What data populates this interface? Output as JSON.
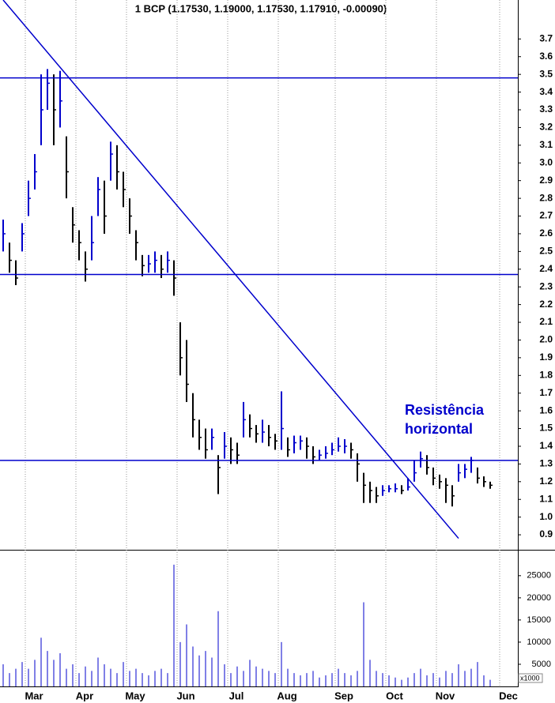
{
  "chart_data": {
    "type": "hlc",
    "title": "1 BCP (1.17530, 1.19000, 1.17530, 1.17910, -0.00090)",
    "annotation": [
      "Resistência",
      "horizontal"
    ],
    "categories": [
      null,
      null,
      null,
      null,
      "Mar",
      null,
      null,
      null,
      null,
      null,
      null,
      null,
      "Apr",
      null,
      null,
      null,
      null,
      null,
      null,
      null,
      "May",
      null,
      null,
      null,
      null,
      null,
      null,
      null,
      "Jun",
      null,
      null,
      null,
      null,
      null,
      null,
      null,
      "Jul",
      null,
      null,
      null,
      null,
      null,
      null,
      null,
      "Aug",
      null,
      null,
      null,
      null,
      null,
      null,
      null,
      null,
      "Sep",
      null,
      null,
      null,
      null,
      null,
      null,
      null,
      "Oct",
      null,
      null,
      null,
      null,
      null,
      null,
      null,
      "Nov",
      null,
      null,
      null,
      null,
      null,
      null,
      null,
      null,
      null,
      "Dec"
    ],
    "high": [
      2.68,
      2.55,
      2.45,
      2.66,
      2.9,
      3.05,
      3.5,
      3.53,
      3.5,
      3.52,
      3.15,
      2.75,
      2.62,
      2.5,
      2.7,
      2.92,
      2.9,
      3.12,
      3.1,
      2.95,
      2.8,
      2.62,
      2.48,
      2.48,
      2.5,
      2.48,
      2.5,
      2.45,
      2.1,
      2.0,
      1.7,
      1.55,
      1.5,
      1.5,
      1.35,
      1.48,
      1.45,
      1.42,
      1.65,
      1.58,
      1.52,
      1.55,
      1.52,
      1.47,
      1.71,
      1.45,
      1.46,
      1.46,
      1.45,
      1.4,
      1.38,
      1.4,
      1.42,
      1.45,
      1.44,
      1.42,
      1.36,
      1.25,
      1.2,
      1.17,
      1.18,
      1.18,
      1.19,
      1.18,
      1.22,
      1.32,
      1.37,
      1.35,
      1.28,
      1.24,
      1.22,
      1.18,
      1.3,
      1.3,
      1.34,
      1.28,
      1.23,
      1.2,
      null,
      null
    ],
    "low": [
      2.5,
      2.38,
      2.31,
      2.5,
      2.7,
      2.85,
      3.1,
      3.3,
      3.1,
      3.2,
      2.8,
      2.55,
      2.45,
      2.33,
      2.45,
      2.7,
      2.6,
      2.9,
      2.85,
      2.75,
      2.6,
      2.45,
      2.36,
      2.38,
      2.38,
      2.35,
      2.38,
      2.25,
      1.8,
      1.65,
      1.45,
      1.38,
      1.33,
      1.38,
      1.13,
      1.33,
      1.3,
      1.3,
      1.45,
      1.45,
      1.42,
      1.42,
      1.4,
      1.38,
      1.38,
      1.34,
      1.36,
      1.38,
      1.33,
      1.3,
      1.32,
      1.33,
      1.35,
      1.37,
      1.36,
      1.33,
      1.2,
      1.08,
      1.08,
      1.08,
      1.12,
      1.14,
      1.14,
      1.13,
      1.15,
      1.2,
      1.28,
      1.24,
      1.18,
      1.16,
      1.08,
      1.06,
      1.2,
      1.22,
      1.25,
      1.19,
      1.17,
      1.16,
      null,
      null
    ],
    "close": [
      2.6,
      2.45,
      2.35,
      2.6,
      2.8,
      2.95,
      3.3,
      3.45,
      3.3,
      3.35,
      2.95,
      2.65,
      2.55,
      2.4,
      2.55,
      2.85,
      2.7,
      3.05,
      2.95,
      2.85,
      2.7,
      2.55,
      2.42,
      2.43,
      2.45,
      2.4,
      2.45,
      2.35,
      1.9,
      1.75,
      1.55,
      1.45,
      1.38,
      1.45,
      1.28,
      1.4,
      1.38,
      1.35,
      1.55,
      1.5,
      1.47,
      1.48,
      1.45,
      1.43,
      1.5,
      1.38,
      1.42,
      1.43,
      1.4,
      1.34,
      1.35,
      1.36,
      1.38,
      1.4,
      1.4,
      1.38,
      1.3,
      1.18,
      1.15,
      1.12,
      1.15,
      1.16,
      1.16,
      1.15,
      1.17,
      1.25,
      1.33,
      1.28,
      1.22,
      1.2,
      1.18,
      1.12,
      1.25,
      1.27,
      1.32,
      1.22,
      1.2,
      1.18,
      null,
      null
    ],
    "up_color": "#0000cc",
    "down_color": "#000000",
    "line_color": "#0000cc",
    "ylim": [
      0.82,
      3.92
    ],
    "yticks": [
      0.9,
      {
        "value": 1.0,
        "label": "1.0"
      },
      1.1,
      1.2,
      1.3,
      1.4,
      1.5,
      1.6,
      1.7,
      1.8,
      1.9,
      {
        "value": 2.0,
        "label": "2.0"
      },
      2.1,
      2.2,
      2.3,
      2.4,
      2.5,
      2.6,
      2.7,
      2.8,
      2.9,
      {
        "value": 3.0,
        "label": "3.0"
      },
      3.1,
      3.2,
      3.3,
      3.4,
      3.5,
      3.6,
      3.7
    ],
    "hlines": [
      3.48,
      2.37,
      1.32
    ],
    "trendline": {
      "start": [
        0,
        3.92
      ],
      "end": [
        72,
        0.88
      ]
    },
    "volume": {
      "values": [
        5000,
        3000,
        4000,
        5500,
        4000,
        6000,
        11000,
        8000,
        6000,
        7500,
        4000,
        5000,
        3000,
        4500,
        3500,
        6500,
        5000,
        4000,
        3000,
        5500,
        3500,
        4000,
        3000,
        2500,
        3500,
        4000,
        3000,
        27500,
        10000,
        14000,
        9000,
        7000,
        8000,
        6500,
        17000,
        5000,
        3000,
        4500,
        3500,
        6000,
        4500,
        4000,
        3500,
        3000,
        10000,
        4000,
        3000,
        2500,
        3000,
        3500,
        2000,
        2500,
        3000,
        4000,
        3000,
        2500,
        3500,
        19000,
        6000,
        3500,
        3000,
        2500,
        2000,
        1500,
        2000,
        3000,
        4000,
        2500,
        3000,
        2000,
        3500,
        3000,
        5000,
        3500,
        4000,
        5500,
        2500,
        1500,
        null,
        null
      ],
      "color": "#0000cc",
      "ylim": [
        0,
        30500
      ],
      "yticks": [
        5000,
        10000,
        15000,
        20000,
        25000
      ],
      "unit_label": "x1000"
    }
  }
}
